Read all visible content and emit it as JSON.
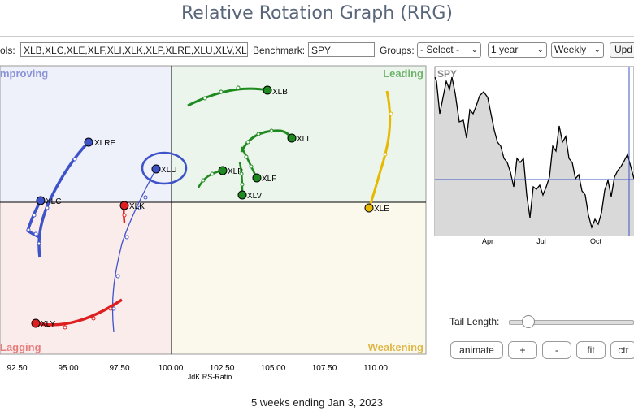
{
  "page_title": "Relative Rotation Graph (RRG)",
  "toolbar": {
    "symbols_label": "ols:",
    "symbols_value": "XLB,XLC,XLE,XLF,XLI,XLK,XLP,XLRE,XLU,XLV,XL",
    "benchmark_label": "Benchmark:",
    "benchmark_value": "SPY",
    "groups_label": "Groups:",
    "groups_value": "- Select -",
    "period_value": "1 year",
    "frequency_value": "Weekly",
    "update_label": "Upd"
  },
  "quadrants": {
    "improving": "mproving",
    "leading": "Leading",
    "lagging": "Lagging",
    "weakening": "Weakening"
  },
  "quadrant_colors": {
    "improving": "#8a93d8",
    "leading": "#6db36d",
    "lagging": "#e67d7d",
    "weakening": "#e0b84a"
  },
  "x_axis": {
    "label": "JdK RS-Ratio",
    "ticks": [
      "92.50",
      "95.00",
      "97.50",
      "100.00",
      "102.50",
      "105.00",
      "107.50",
      "110.00"
    ]
  },
  "sectors": [
    {
      "name": "XLB",
      "color": "#1f8a1f"
    },
    {
      "name": "XLI",
      "color": "#1f8a1f"
    },
    {
      "name": "XLP",
      "color": "#1f8a1f"
    },
    {
      "name": "XLF",
      "color": "#1f8a1f"
    },
    {
      "name": "XLV",
      "color": "#1f8a1f"
    },
    {
      "name": "XLE",
      "color": "#e6b800"
    },
    {
      "name": "XLRE",
      "color": "#3f53c9"
    },
    {
      "name": "XLU",
      "color": "#3f53c9"
    },
    {
      "name": "XLC",
      "color": "#3f53c9"
    },
    {
      "name": "XLK",
      "color": "#dd1f1f"
    },
    {
      "name": "XLY",
      "color": "#dd1f1f"
    }
  ],
  "benchmark_chart": {
    "symbol": "SPY",
    "x_ticks": [
      "Apr",
      "Jul",
      "Oct"
    ]
  },
  "controls": {
    "tail_length_label": "Tail Length:",
    "tail_length_value": 0.08,
    "animate_label": "animate",
    "plus_label": "+",
    "minus_label": "-",
    "fit_label": "fit",
    "ctr_label": "ctr"
  },
  "footer_text": "5 weeks ending Jan 3, 2023"
}
